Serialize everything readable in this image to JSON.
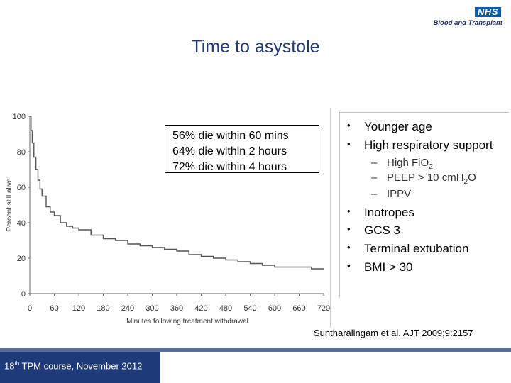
{
  "logo": {
    "brand": "NHS",
    "org": "Blood and Transplant"
  },
  "slide_title": "Time to asystole",
  "callout": {
    "lines": [
      "56% die within 60 mins",
      "64% die within 2 hours",
      "72% die within 4 hours"
    ]
  },
  "factors": {
    "items": [
      "Younger age",
      "High respiratory support"
    ],
    "subitems": [
      {
        "text": "High FiO",
        "sub": "2",
        "tail": ""
      },
      {
        "text": "PEEP > 10 cmH",
        "sub": "2",
        "tail": "O"
      },
      {
        "text": "IPPV",
        "sub": "",
        "tail": ""
      }
    ],
    "items2": [
      "Inotropes",
      "GCS 3",
      "Terminal extubation",
      "BMI > 30"
    ]
  },
  "citation": "Suntharalingam et al. AJT 2009;9:2157",
  "footer": {
    "number": "18",
    "ordinal": "th",
    "rest": " TPM course, November 2012"
  },
  "colors": {
    "title": "#1f3a78",
    "footer_panel": "#1f3a78",
    "nhs_blue": "#005EB8",
    "curve": "#555555"
  },
  "chart_data": {
    "type": "line",
    "xlabel": "Minutes following treatment withdrawal",
    "ylabel": "Percent still alive",
    "xlim": [
      0,
      720
    ],
    "ylim": [
      0,
      100
    ],
    "xticks": [
      0,
      60,
      120,
      180,
      240,
      300,
      360,
      420,
      480,
      540,
      600,
      660,
      720
    ],
    "yticks": [
      0,
      20,
      40,
      60,
      80,
      100
    ],
    "series": [
      {
        "x": [
          0,
          3,
          6,
          10,
          15,
          20,
          25,
          30,
          40,
          50,
          60,
          75,
          90,
          105,
          120,
          150,
          180,
          210,
          240,
          270,
          300,
          330,
          360,
          390,
          420,
          450,
          480,
          510,
          540,
          570,
          600,
          630,
          660,
          690,
          720
        ],
        "y": [
          100,
          92,
          85,
          77,
          70,
          64,
          59,
          55,
          49,
          46,
          44,
          40,
          38,
          37,
          36,
          33,
          31,
          30,
          28,
          27,
          26,
          25,
          24,
          22,
          21,
          20,
          19,
          18,
          17,
          16,
          15,
          15,
          15,
          14,
          14
        ]
      }
    ]
  }
}
